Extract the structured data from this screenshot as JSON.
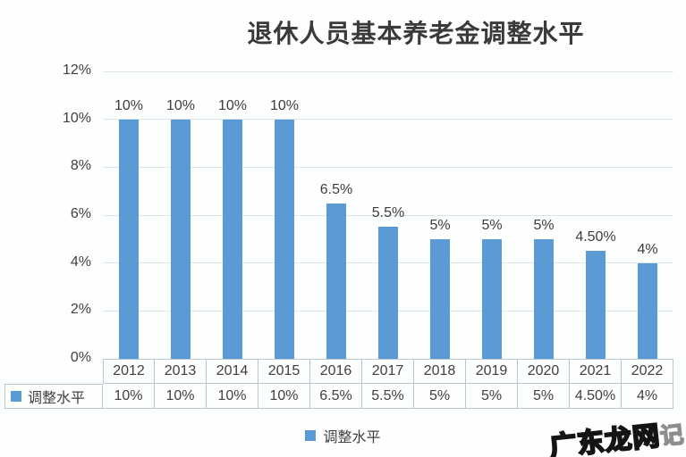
{
  "chart_data": {
    "type": "bar",
    "title": "退休人员基本养老金调整水平",
    "categories": [
      "2012",
      "2013",
      "2014",
      "2015",
      "2016",
      "2017",
      "2018",
      "2019",
      "2020",
      "2021",
      "2022"
    ],
    "series": [
      {
        "name": "调整水平",
        "values": [
          10,
          10,
          10,
          10,
          6.5,
          5.5,
          5,
          5,
          5,
          4.5,
          4
        ]
      }
    ],
    "value_labels": [
      "10%",
      "10%",
      "10%",
      "10%",
      "6.5%",
      "5.5%",
      "5%",
      "5%",
      "5%",
      "4.50%",
      "4%"
    ],
    "yticks": [
      0,
      2,
      4,
      6,
      8,
      10,
      12
    ],
    "ytick_labels": [
      "0%",
      "2%",
      "4%",
      "6%",
      "8%",
      "10%",
      "12%"
    ],
    "ylim": [
      0,
      12
    ],
    "grid": true,
    "legend_position": "bottom",
    "bar_color": "#5B9BD5"
  },
  "data_table": {
    "row_header": "调整水平",
    "years": [
      "2012",
      "2013",
      "2014",
      "2015",
      "2016",
      "2017",
      "2018",
      "2019",
      "2020",
      "2021",
      "2022"
    ],
    "values": [
      "10%",
      "10%",
      "10%",
      "10%",
      "6.5%",
      "5.5%",
      "5%",
      "5%",
      "5%",
      "4.50%",
      "4%"
    ]
  },
  "legend": {
    "label": "调整水平"
  },
  "watermark": {
    "main": "广东龙网",
    "suffix": "记"
  },
  "colors": {
    "bar": "#5B9BD5",
    "grid": "#dde4ea",
    "table_border": "#bcc6d1",
    "text": "#404040",
    "title": "#3a3a3a"
  }
}
